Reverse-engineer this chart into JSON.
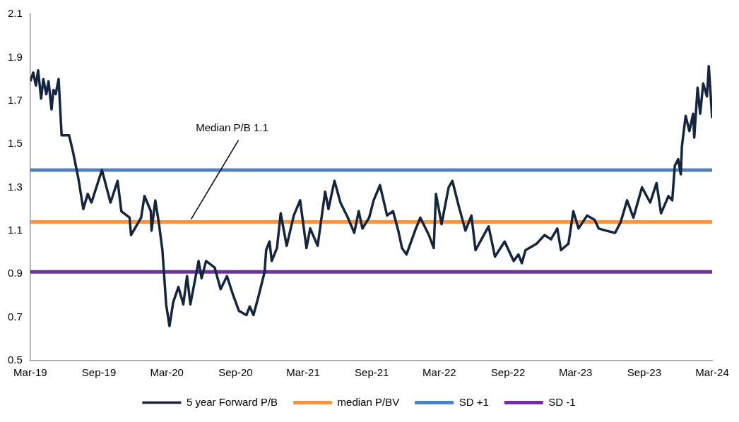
{
  "chart_data": {
    "type": "line",
    "x": [
      "2019-03-01",
      "2019-03-09",
      "2019-03-16",
      "2019-03-22",
      "2019-03-30",
      "2019-04-05",
      "2019-04-13",
      "2019-04-19",
      "2019-04-27",
      "2019-05-02",
      "2019-05-08",
      "2019-05-16",
      "2019-05-24",
      "2019-06-13",
      "2019-06-24",
      "2019-07-08",
      "2019-07-21",
      "2019-08-02",
      "2019-08-12",
      "2019-09-09",
      "2019-10-02",
      "2019-10-21",
      "2019-10-31",
      "2019-11-22",
      "2019-11-26",
      "2019-12-23",
      "2020-01-01",
      "2020-01-18",
      "2020-01-20",
      "2020-01-30",
      "2020-02-09",
      "2020-02-18",
      "2020-02-28",
      "2020-03-08",
      "2020-03-18",
      "2020-04-01",
      "2020-04-14",
      "2020-04-24",
      "2020-05-03",
      "2020-05-25",
      "2020-06-02",
      "2020-06-14",
      "2020-07-07",
      "2020-07-23",
      "2020-08-09",
      "2020-08-26",
      "2020-09-10",
      "2020-09-30",
      "2020-10-09",
      "2020-10-19",
      "2020-11-02",
      "2020-11-18",
      "2020-11-22",
      "2020-12-01",
      "2020-12-07",
      "2020-12-21",
      "2020-12-31",
      "2021-01-16",
      "2021-02-04",
      "2021-02-21",
      "2021-03-10",
      "2021-03-20",
      "2021-04-09",
      "2021-04-29",
      "2021-05-08",
      "2021-05-24",
      "2021-06-09",
      "2021-06-29",
      "2021-07-16",
      "2021-07-28",
      "2021-08-07",
      "2021-08-25",
      "2021-09-06",
      "2021-09-23",
      "2021-10-12",
      "2021-10-28",
      "2021-11-11",
      "2021-11-21",
      "2021-12-03",
      "2021-12-26",
      "2022-01-09",
      "2022-02-01",
      "2022-02-14",
      "2022-02-20",
      "2022-03-07",
      "2022-03-26",
      "2022-04-05",
      "2022-04-21",
      "2022-05-10",
      "2022-05-26",
      "2022-06-06",
      "2022-06-22",
      "2022-07-11",
      "2022-07-28",
      "2022-08-23",
      "2022-09-16",
      "2022-09-29",
      "2022-10-08",
      "2022-10-18",
      "2022-11-17",
      "2022-12-08",
      "2022-12-25",
      "2023-01-11",
      "2023-01-21",
      "2023-02-10",
      "2023-02-23",
      "2023-03-09",
      "2023-04-01",
      "2023-04-21",
      "2023-05-02",
      "2023-05-22",
      "2023-06-15",
      "2023-06-30",
      "2023-07-17",
      "2023-08-03",
      "2023-08-26",
      "2023-09-17",
      "2023-10-04",
      "2023-10-16",
      "2023-11-05",
      "2023-11-15",
      "2023-11-22",
      "2023-12-01",
      "2023-12-08",
      "2023-12-11",
      "2023-12-21",
      "2023-12-31",
      "2024-01-10",
      "2024-01-13",
      "2024-01-22",
      "2024-01-29",
      "2024-02-06",
      "2024-02-16",
      "2024-02-21",
      "2024-03-01"
    ],
    "series": [
      {
        "name": "5 year Forward P/B",
        "color": "#14263f",
        "values": [
          1.79,
          1.83,
          1.77,
          1.84,
          1.71,
          1.8,
          1.73,
          1.79,
          1.66,
          1.75,
          1.73,
          1.8,
          1.54,
          1.54,
          1.46,
          1.34,
          1.2,
          1.27,
          1.23,
          1.38,
          1.23,
          1.33,
          1.19,
          1.16,
          1.08,
          1.16,
          1.26,
          1.19,
          1.1,
          1.24,
          1.13,
          1.01,
          0.76,
          0.66,
          0.77,
          0.84,
          0.76,
          0.89,
          0.76,
          0.96,
          0.88,
          0.96,
          0.93,
          0.83,
          0.89,
          0.8,
          0.73,
          0.71,
          0.75,
          0.71,
          0.8,
          0.91,
          1.01,
          1.05,
          0.96,
          1.02,
          1.18,
          1.03,
          1.17,
          1.24,
          1.02,
          1.11,
          1.03,
          1.28,
          1.2,
          1.33,
          1.23,
          1.16,
          1.09,
          1.19,
          1.11,
          1.16,
          1.24,
          1.31,
          1.17,
          1.19,
          1.1,
          1.02,
          0.99,
          1.1,
          1.16,
          1.08,
          1.02,
          1.27,
          1.13,
          1.3,
          1.33,
          1.22,
          1.1,
          1.17,
          1.01,
          1.06,
          1.12,
          0.98,
          1.05,
          0.96,
          0.99,
          0.95,
          1.01,
          1.04,
          1.08,
          1.06,
          1.11,
          1.01,
          1.04,
          1.19,
          1.11,
          1.17,
          1.15,
          1.11,
          1.1,
          1.09,
          1.14,
          1.24,
          1.16,
          1.3,
          1.23,
          1.32,
          1.18,
          1.26,
          1.24,
          1.4,
          1.43,
          1.36,
          1.49,
          1.63,
          1.56,
          1.64,
          1.53,
          1.76,
          1.64,
          1.78,
          1.72,
          1.86,
          1.62
        ]
      }
    ],
    "ref_lines": [
      {
        "axis": "y",
        "value": 1.14,
        "label": "median P/BV",
        "color": "#f79646"
      },
      {
        "axis": "y",
        "value": 1.38,
        "label": "SD +1",
        "color": "#4f81bd"
      },
      {
        "axis": "y",
        "value": 0.91,
        "label": "SD -1",
        "color": "#7030a0"
      }
    ],
    "annotations": [
      {
        "text": "Median P/B 1.1",
        "x": "2020-05-05",
        "y": 1.14
      }
    ],
    "xlim": [
      "2019-03-01",
      "2024-03-01"
    ],
    "xticks": [
      {
        "value": "2019-03-01",
        "label": "Mar-19"
      },
      {
        "value": "2019-09-01",
        "label": "Sep-19"
      },
      {
        "value": "2020-03-01",
        "label": "Mar-20"
      },
      {
        "value": "2020-09-01",
        "label": "Sep-20"
      },
      {
        "value": "2021-03-01",
        "label": "Mar-21"
      },
      {
        "value": "2021-09-01",
        "label": "Sep-21"
      },
      {
        "value": "2022-03-01",
        "label": "Mar-22"
      },
      {
        "value": "2022-09-01",
        "label": "Sep-22"
      },
      {
        "value": "2023-03-01",
        "label": "Mar-23"
      },
      {
        "value": "2023-09-01",
        "label": "Sep-23"
      },
      {
        "value": "2024-03-01",
        "label": "Mar-24"
      }
    ],
    "ylim": [
      0.5,
      2.1
    ],
    "yticks": [
      0.5,
      0.7,
      0.9,
      1.1,
      1.3,
      1.5,
      1.7,
      1.9,
      2.1
    ],
    "grid": false,
    "legend": "bottom",
    "marker": "none",
    "line_style": "solid"
  }
}
